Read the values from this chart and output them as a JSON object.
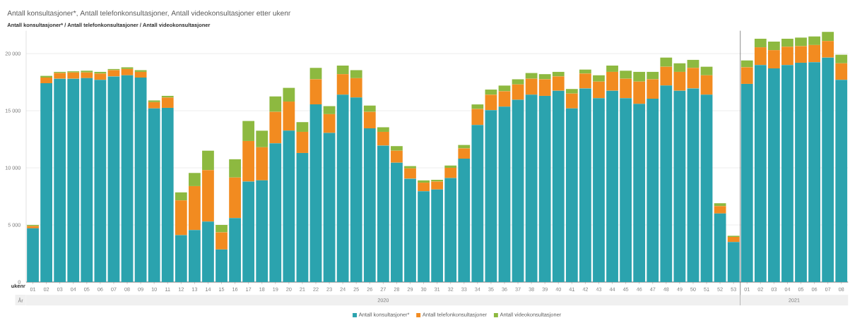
{
  "chart_data": [
    {
      "type": "bar",
      "title": "Antall konsultasjoner*, Antall telefonkonsultasjoner, Antall videokonsultasjoner etter ukenr",
      "subtitle": "Antall konsultasjoner* / Antall telefonkonsultasjoner / Antall videokonsultasjoner",
      "xlabel": "2020",
      "annotations": [
        "ukenr",
        "År"
      ],
      "categories": [
        "01",
        "02",
        "03",
        "04",
        "05",
        "06",
        "07",
        "08",
        "09",
        "10",
        "11",
        "12",
        "13",
        "14",
        "15",
        "16",
        "17",
        "18",
        "19",
        "20",
        "21",
        "22",
        "23",
        "24",
        "25",
        "26",
        "27",
        "28",
        "29",
        "30",
        "31",
        "32",
        "33",
        "34",
        "35",
        "36",
        "37",
        "38",
        "39",
        "40",
        "41",
        "42",
        "43",
        "44",
        "45",
        "46",
        "47",
        "48",
        "49",
        "50",
        "51",
        "52",
        "53"
      ],
      "stacked": true,
      "series": [
        {
          "name": "Antall konsultasjoner*",
          "color": "#2ba3ae",
          "values": [
            4700,
            17400,
            17800,
            17800,
            17850,
            17700,
            18000,
            18100,
            17900,
            15200,
            15250,
            4100,
            4550,
            5300,
            2850,
            5600,
            8800,
            8900,
            12150,
            13250,
            11300,
            15550,
            13050,
            16400,
            16150,
            13450,
            11950,
            10450,
            9050,
            7950,
            8100,
            9100,
            10800,
            13750,
            15050,
            15350,
            15950,
            16400,
            16300,
            16750,
            15200,
            16950,
            16100,
            16750,
            16100,
            15600,
            16050,
            17200,
            16750,
            16950,
            16400,
            6000,
            3500
          ]
        },
        {
          "name": "Antall telefonkonsultasjoner",
          "color": "#f28b20",
          "values": [
            200,
            500,
            500,
            550,
            500,
            550,
            550,
            550,
            500,
            550,
            900,
            3050,
            3850,
            4500,
            1500,
            3550,
            3550,
            2900,
            2750,
            2550,
            1850,
            2200,
            1650,
            1800,
            1700,
            1450,
            1200,
            1050,
            900,
            750,
            700,
            900,
            900,
            1400,
            1350,
            1350,
            1350,
            1400,
            1450,
            1250,
            1300,
            1300,
            1450,
            1650,
            1700,
            1950,
            1700,
            1650,
            1650,
            1800,
            1700,
            650,
            450
          ]
        },
        {
          "name": "Antall videokonsultasjoner",
          "color": "#8db940",
          "values": [
            100,
            150,
            100,
            100,
            150,
            150,
            100,
            150,
            150,
            150,
            150,
            700,
            1150,
            1700,
            650,
            1600,
            1750,
            1450,
            1350,
            1200,
            850,
            1000,
            700,
            750,
            700,
            550,
            400,
            400,
            200,
            200,
            150,
            200,
            300,
            400,
            450,
            500,
            450,
            500,
            450,
            400,
            400,
            350,
            550,
            550,
            700,
            850,
            650,
            800,
            750,
            700,
            750,
            250,
            100
          ]
        }
      ],
      "ylim": [
        0,
        22000
      ],
      "yticks": [
        0,
        {
          "value": 5000,
          "label": "5 000"
        },
        {
          "value": 10000,
          "label": "10 000"
        },
        {
          "value": 15000,
          "label": "15 000"
        },
        {
          "value": 20000,
          "label": "20 000"
        }
      ],
      "grid": "y",
      "legend": "bottom"
    },
    {
      "type": "bar",
      "xlabel": "2021",
      "categories": [
        "01",
        "02",
        "03",
        "04",
        "05",
        "06",
        "07",
        "08"
      ],
      "stacked": true,
      "series": [
        {
          "color": "#2ba3ae",
          "values": [
            17350,
            19000,
            18700,
            19000,
            19200,
            19250,
            19650,
            17700
          ]
        },
        {
          "color": "#f28b20",
          "values": [
            1450,
            1550,
            1600,
            1600,
            1450,
            1500,
            1450,
            1450
          ]
        },
        {
          "color": "#8db940",
          "values": [
            600,
            750,
            750,
            700,
            750,
            750,
            800,
            750
          ]
        }
      ],
      "ylim": [
        0,
        22000
      ],
      "yticks": [
        0,
        5000,
        10000,
        15000,
        20000
      ],
      "grid": "y",
      "tick_labels": "x"
    }
  ]
}
